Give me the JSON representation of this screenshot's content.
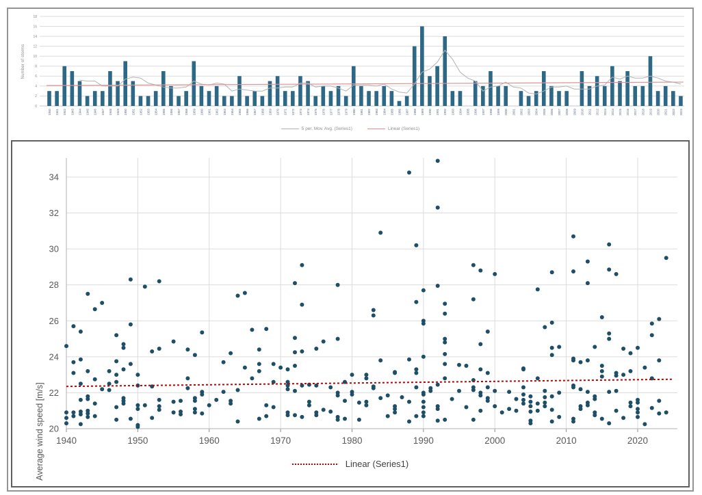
{
  "colors": {
    "bar": "#2e6887",
    "mov_avg": "#b3b3b3",
    "top_trend": "#dd9494",
    "marker": "#1e4f66",
    "bottom_trend": "#c00000",
    "grid": "#dcdcdc",
    "axis": "#bfbfbf",
    "tick_text": "#595959",
    "top_tick_text": "#8c8c8c",
    "year_label": "#5b6b80"
  },
  "chart_data": [
    {
      "type": "bar",
      "title": "",
      "ylabel": "Number of storms",
      "xlabel": "",
      "ylim": [
        0,
        18
      ],
      "ytick_step": 2,
      "grid": true,
      "legend_position": "bottom",
      "mov_avg_label": "5 per. Mov. Avg. (Series1)",
      "trend_label": "Linear (Series1)",
      "trend": {
        "x1": 1940,
        "y1": 4.1,
        "x2": 2023,
        "y2": 4.8
      },
      "year_start": 1940,
      "categories": [
        1940,
        1941,
        1942,
        1943,
        1944,
        1945,
        1946,
        1947,
        1948,
        1949,
        1950,
        1951,
        1952,
        1953,
        1954,
        1955,
        1956,
        1957,
        1958,
        1959,
        1960,
        1961,
        1962,
        1963,
        1964,
        1965,
        1966,
        1967,
        1968,
        1969,
        1970,
        1971,
        1972,
        1973,
        1974,
        1975,
        1976,
        1977,
        1978,
        1979,
        1980,
        1981,
        1982,
        1983,
        1984,
        1985,
        1986,
        1987,
        1988,
        1989,
        1990,
        1991,
        1992,
        1993,
        1994,
        1995,
        1996,
        1997,
        1998,
        1999,
        2000,
        2001,
        2002,
        2003,
        2004,
        2005,
        2006,
        2007,
        2008,
        2009,
        2010,
        2011,
        2012,
        2013,
        2014,
        2015,
        2016,
        2017,
        2018,
        2019,
        2020,
        2021,
        2022,
        2023
      ],
      "values": [
        3,
        3,
        8,
        7,
        5,
        2,
        3,
        3,
        7,
        5,
        9,
        5,
        2,
        2,
        3,
        7,
        4,
        2,
        3,
        9,
        4,
        3,
        4,
        2,
        2,
        6,
        2,
        3,
        2,
        5,
        6,
        3,
        3,
        6,
        5,
        2,
        4,
        3,
        4,
        2,
        8,
        4,
        3,
        3,
        4,
        3,
        1,
        2,
        12,
        16,
        6,
        8,
        14,
        3,
        3,
        0,
        5,
        4,
        7,
        4,
        4,
        0,
        3,
        2,
        3,
        7,
        4,
        3,
        3,
        0,
        7,
        4,
        6,
        4,
        8,
        5,
        7,
        4,
        4,
        10,
        3,
        4,
        3,
        2
      ]
    },
    {
      "type": "scatter",
      "title": "",
      "ylabel": "Average wind speed [m/s]",
      "xlabel": "",
      "ylim": [
        20,
        35
      ],
      "yticks": [
        20,
        22,
        24,
        26,
        28,
        30,
        32,
        34
      ],
      "xticks": [
        1940,
        1950,
        1960,
        1970,
        1980,
        1990,
        2000,
        2010,
        2020
      ],
      "xlim": [
        1940,
        2026
      ],
      "grid": true,
      "legend_label": "Linear (Series1)",
      "legend_position": "bottom",
      "trend": {
        "x1": 1940,
        "y1": 22.35,
        "x2": 2025,
        "y2": 22.75
      },
      "points_by_year": {
        "1940": [
          24.6,
          20.9,
          20.6,
          20.3
        ],
        "1941": [
          25.7,
          23.7,
          23.1,
          20.9,
          20.7
        ],
        "1942": [
          25.4,
          23.85,
          22.5,
          21.6,
          20.95,
          20.8,
          20.25
        ],
        "1943": [
          27.5,
          23.2,
          21.8,
          21.65,
          21.0,
          20.85,
          20.65
        ],
        "1944": [
          26.65,
          22.75,
          21.4,
          20.7
        ],
        "1945": [
          27.0,
          22.2
        ],
        "1946": [
          23.2,
          22.5,
          22.15
        ],
        "1947": [
          25.2,
          23.75,
          23.0,
          22.6,
          21.2,
          20.5
        ],
        "1948": [
          24.7,
          24.5,
          23.3,
          21.7,
          21.55,
          21.4
        ],
        "1949": [
          28.3,
          25.8,
          23.6,
          20.55
        ],
        "1950": [
          23.0,
          22.4,
          21.3,
          21.1,
          20.2,
          20.1
        ],
        "1951": [
          27.9,
          21.3
        ],
        "1952": [
          24.3,
          22.35,
          20.6
        ],
        "1953": [
          28.2,
          24.45,
          21.6,
          21.25,
          21.05
        ],
        "1955": [
          24.85,
          21.5,
          20.9
        ],
        "1956": [
          21.55,
          20.95,
          20.8
        ],
        "1957": [
          24.4,
          22.8,
          22.25
        ],
        "1958": [
          24.1,
          21.7,
          21.55,
          21.1,
          20.9
        ],
        "1959": [
          25.35,
          22.05,
          21.9,
          20.85
        ],
        "1960": [
          21.3
        ],
        "1961": [
          21.6
        ],
        "1962": [
          23.7,
          22.05
        ],
        "1963": [
          24.2,
          21.55,
          21.4
        ],
        "1964": [
          27.4,
          22.15,
          20.4
        ],
        "1965": [
          27.55,
          23.4
        ],
        "1966": [
          25.5,
          22.8
        ],
        "1967": [
          24.4,
          23.6,
          23.2,
          20.55
        ],
        "1968": [
          25.55,
          21.3,
          20.7
        ],
        "1969": [
          23.6,
          22.6,
          21.2
        ],
        "1970": [
          23.4
        ],
        "1971": [
          23.3,
          22.6,
          22.4,
          22.2,
          20.9,
          20.75
        ],
        "1972": [
          28.1,
          25.05,
          24.25,
          23.5,
          22.1,
          20.75
        ],
        "1973": [
          29.1,
          26.9,
          24.3,
          22.4,
          20.65
        ],
        "1974": [
          22.45,
          21.5,
          21.3
        ],
        "1975": [
          24.45,
          22.4,
          20.9,
          20.75
        ],
        "1976": [
          24.85,
          21.05
        ],
        "1977": [
          22.3,
          20.95
        ],
        "1978": [
          28.0,
          25.0,
          22.0,
          21.85,
          20.65,
          20.5
        ],
        "1979": [
          22.6,
          21.55,
          20.55
        ],
        "1980": [
          23.0,
          22.05,
          21.9
        ],
        "1981": [
          21.45,
          20.5
        ],
        "1982": [
          23.0,
          22.8,
          21.5,
          21.3
        ],
        "1983": [
          26.6,
          26.3,
          22.35,
          22.25
        ],
        "1984": [
          30.9,
          23.8,
          21.7
        ],
        "1985": [
          21.85,
          20.7
        ],
        "1986": [
          23.15,
          23.1,
          21.25,
          21.1,
          20.9
        ],
        "1987": [
          21.75
        ],
        "1988": [
          34.25,
          23.85,
          21.5,
          20.4
        ],
        "1989": [
          30.2,
          27.05,
          23.3,
          23.1,
          22.3,
          20.7
        ],
        "1990": [
          27.7,
          26.0,
          25.85,
          24.0,
          22.0,
          21.9,
          21.5,
          21.2,
          20.9,
          20.7
        ],
        "1991": [
          22.25,
          22.1
        ],
        "1992": [
          34.9,
          32.3,
          27.95,
          22.45,
          21.25,
          21.1,
          20.45
        ],
        "1993": [
          26.95,
          26.4,
          25.0,
          24.8,
          24.15,
          23.6,
          22.8,
          20.5
        ],
        "1994": [
          21.65
        ],
        "1995": [
          23.55,
          22.1
        ],
        "1996": [
          23.5,
          21.2
        ],
        "1997": [
          29.1,
          27.2,
          22.7,
          22.3,
          22.15,
          20.5
        ],
        "1998": [
          28.8,
          24.7,
          23.3,
          22.0,
          21.85,
          21.0
        ],
        "1999": [
          25.4,
          23.1,
          22.3,
          21.7,
          21.55
        ],
        "2000": [
          28.6,
          22.1,
          21.25
        ],
        "2001": [
          20.9
        ],
        "2002": [
          22.05,
          21.1
        ],
        "2003": [
          21.65,
          21.0
        ],
        "2004": [
          23.35,
          23.3,
          22.3,
          21.9,
          21.6,
          21.4
        ],
        "2005": [
          21.8,
          21.5,
          21.25,
          20.95,
          20.45,
          20.3
        ],
        "2006": [
          27.75,
          22.8,
          21.4,
          21.0
        ],
        "2007": [
          25.65,
          22.1,
          21.75,
          21.45,
          21.25
        ],
        "2008": [
          28.7,
          25.9,
          24.5,
          24.1,
          21.8,
          21.05,
          20.4
        ],
        "2009": [
          24.55,
          22.0,
          20.65
        ],
        "2011": [
          30.7,
          28.75,
          23.9,
          23.8,
          22.4,
          22.3,
          20.55,
          20.4
        ],
        "2012": [
          23.7,
          22.2,
          21.25,
          21.1
        ],
        "2013": [
          29.3,
          28.1,
          23.8,
          22.05,
          21.45,
          21.3
        ],
        "2014": [
          24.55,
          21.8,
          21.65,
          20.9,
          20.75
        ],
        "2015": [
          26.2,
          23.5,
          23.2,
          22.9,
          20.55
        ],
        "2016": [
          30.25,
          28.85,
          25.3,
          25.0,
          22.05,
          20.3
        ],
        "2017": [
          28.6,
          23.1,
          22.95,
          22.1,
          21.0
        ],
        "2018": [
          24.45,
          23.0,
          20.6
        ],
        "2019": [
          24.2,
          23.2,
          21.45,
          21.25
        ],
        "2020": [
          24.5,
          21.6,
          21.45,
          21.1,
          20.9,
          20.65
        ],
        "2021": [
          23.4,
          20.25
        ],
        "2022": [
          25.85,
          25.2,
          22.8,
          21.15
        ],
        "2023": [
          26.1,
          23.8,
          21.55,
          20.85
        ],
        "2024": [
          29.5,
          20.9
        ]
      }
    }
  ]
}
